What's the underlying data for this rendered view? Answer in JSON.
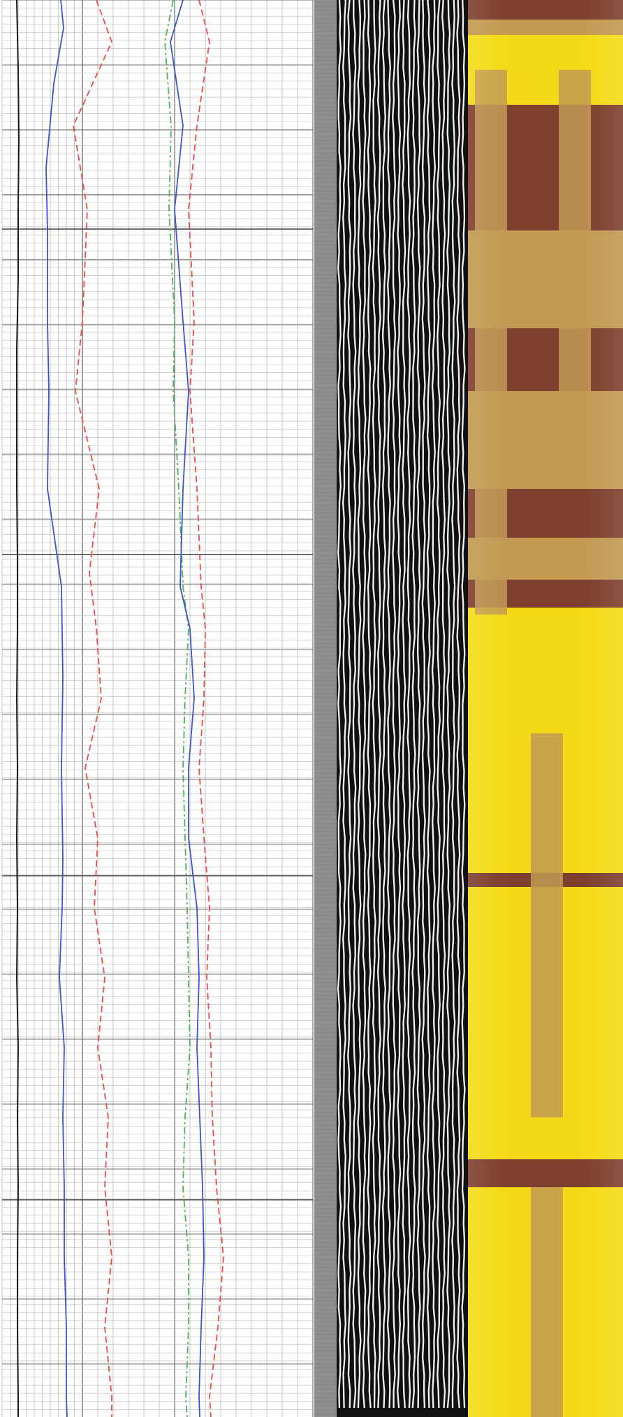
{
  "colors": {
    "grid_minor": "#b9b9b9",
    "grid_major": "#6d6d6d",
    "curve_black": "#1a1a1a",
    "curve_blue": "#3b55c9",
    "curve_red": "#ee4b46",
    "curve_green": "#4fb25a",
    "strip_gray": "#8a8a8a",
    "seismic_bg": "#111111",
    "seismic_stripe": "#f2f2f2",
    "image_yellow": "#f4da16",
    "image_tan": "#c29a52",
    "image_brown": "#7e3f2e"
  },
  "chart_data": {
    "type": "line",
    "depth_range": [
      0,
      2029
    ],
    "tracks": [
      {
        "series": [
          {
            "color": "curve_black",
            "style": "solid",
            "depth": [
              0,
              100,
              200,
              300,
              400,
              500,
              600,
              700,
              800,
              900,
              1000,
              1100,
              1200,
              1300,
              1400,
              1500,
              1600,
              1700,
              1800,
              1900,
              2000,
              2029
            ],
            "x": [
              24,
              26,
              27,
              26,
              26,
              24,
              24,
              24,
              25,
              25,
              24,
              25,
              24,
              25,
              24,
              26,
              25,
              26,
              25,
              25,
              26,
              26
            ]
          },
          {
            "color": "curve_blue",
            "style": "solid",
            "depth": [
              0,
              40,
              120,
              240,
              330,
              460,
              560,
              700,
              840,
              970,
              1100,
              1230,
              1300,
              1400,
              1500,
              1600,
              1700,
              1800,
              1900,
              2000,
              2029
            ],
            "x": [
              87,
              91,
              77,
              66,
              68,
              68,
              70,
              68,
              88,
              90,
              88,
              90,
              89,
              85,
              92,
              90,
              92,
              92,
              95,
              95,
              96
            ]
          },
          {
            "color": "curve_red",
            "style": "dashed",
            "depth": [
              0,
              60,
              180,
              300,
              460,
              560,
              700,
              820,
              900,
              1000,
              1100,
              1200,
              1300,
              1400,
              1500,
              1600,
              1700,
              1800,
              1900,
              2000,
              2029
            ],
            "x": [
              138,
              160,
              105,
              125,
              118,
              108,
              142,
              128,
              138,
              145,
              122,
              140,
              135,
              150,
              140,
              155,
              150,
              160,
              150,
              160,
              160
            ]
          },
          {
            "color": "curve_green",
            "style": "dashdot",
            "depth": [
              0,
              60,
              180,
              300,
              460,
              560,
              700,
              840,
              900,
              1000,
              1100,
              1200,
              1300,
              1400,
              1500,
              1600,
              1700,
              1800,
              1900,
              2000,
              2029
            ],
            "x": [
              248,
              236,
              245,
              242,
              250,
              248,
              256,
              262,
              270,
              265,
              262,
              265,
              268,
              270,
              272,
              265,
              262,
              270,
              270,
              266,
              268
            ]
          },
          {
            "color": "curve_blue",
            "style": "solid",
            "depth": [
              0,
              60,
              180,
              300,
              460,
              560,
              700,
              840,
              900,
              1000,
              1100,
              1200,
              1300,
              1400,
              1500,
              1600,
              1700,
              1800,
              1900,
              2000,
              2029
            ],
            "x": [
              262,
              244,
              262,
              250,
              262,
              270,
              262,
              258,
              272,
              278,
              270,
              270,
              282,
              285,
              282,
              286,
              290,
              292,
              288,
              285,
              286
            ]
          },
          {
            "color": "curve_red",
            "style": "dashed",
            "depth": [
              0,
              60,
              180,
              300,
              460,
              560,
              700,
              840,
              900,
              1000,
              1100,
              1200,
              1300,
              1400,
              1500,
              1600,
              1700,
              1800,
              1900,
              2000,
              2029
            ],
            "x": [
              285,
              300,
              282,
              270,
              278,
              272,
              282,
              288,
              294,
              292,
              285,
              292,
              300,
              296,
              302,
              304,
              310,
              320,
              312,
              300,
              302
            ]
          }
        ]
      }
    ],
    "image_log": {
      "bands": [
        [
          0,
          28,
          "image_brown"
        ],
        [
          28,
          50,
          "image_tan"
        ],
        [
          50,
          150,
          "image_yellow"
        ],
        [
          150,
          330,
          "image_brown"
        ],
        [
          330,
          360,
          "image_tan"
        ],
        [
          360,
          470,
          "image_tan"
        ],
        [
          470,
          560,
          "image_brown"
        ],
        [
          560,
          610,
          "image_tan"
        ],
        [
          610,
          700,
          "image_tan"
        ],
        [
          700,
          770,
          "image_brown"
        ],
        [
          770,
          830,
          "image_tan"
        ],
        [
          830,
          870,
          "image_brown"
        ],
        [
          870,
          1250,
          "image_yellow"
        ],
        [
          1250,
          1270,
          "image_brown"
        ],
        [
          1270,
          1660,
          "image_yellow"
        ],
        [
          1660,
          1700,
          "image_brown"
        ],
        [
          1700,
          2029,
          "image_yellow"
        ]
      ],
      "dark_lanes": [
        [
          680,
          100,
          340
        ],
        [
          680,
          370,
          880
        ],
        [
          800,
          100,
          330
        ],
        [
          800,
          470,
          700
        ],
        [
          760,
          1050,
          1600
        ],
        [
          760,
          1700,
          2029
        ]
      ]
    }
  }
}
